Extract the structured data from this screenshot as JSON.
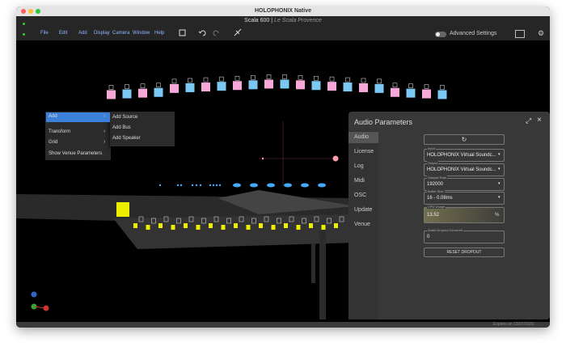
{
  "window": {
    "title": "HOLOPHONIX Native",
    "project": "Scala 600",
    "separator": "|",
    "venue": "Le Scala Provence"
  },
  "menu": [
    "File",
    "Edit",
    "Add",
    "Display",
    "Camera",
    "Window",
    "Help"
  ],
  "toolbar": {
    "advanced_settings": "Advanced Settings"
  },
  "context_menu": {
    "items": [
      "Add",
      "Transform",
      "Grid",
      "Show Venue Parameters"
    ],
    "submenu": [
      "Add Source",
      "Add Bus",
      "Add Speaker"
    ]
  },
  "panel": {
    "title": "Audio Parameters",
    "tabs": [
      "Audio",
      "License",
      "Log",
      "Midi",
      "OSC",
      "Update",
      "Venue"
    ],
    "fields": [
      {
        "label": "Input",
        "value": "HOLOPHONIX Virtual Soundc..."
      },
      {
        "label": "Output",
        "value": "HOLOPHONIX Virtual Soundc..."
      },
      {
        "label": "Sample Rate",
        "value": "192000"
      },
      {
        "label": "Buffer Size",
        "value": "16 - 0.08ms"
      },
      {
        "label": "CPU Usage",
        "value": "13.52",
        "unit": "%"
      },
      {
        "label": "Audio Dropout Occurred",
        "value": "0"
      }
    ],
    "button": "RESET DROPOUT"
  },
  "status": {
    "expiry": "Expires on 13/07/2023"
  }
}
